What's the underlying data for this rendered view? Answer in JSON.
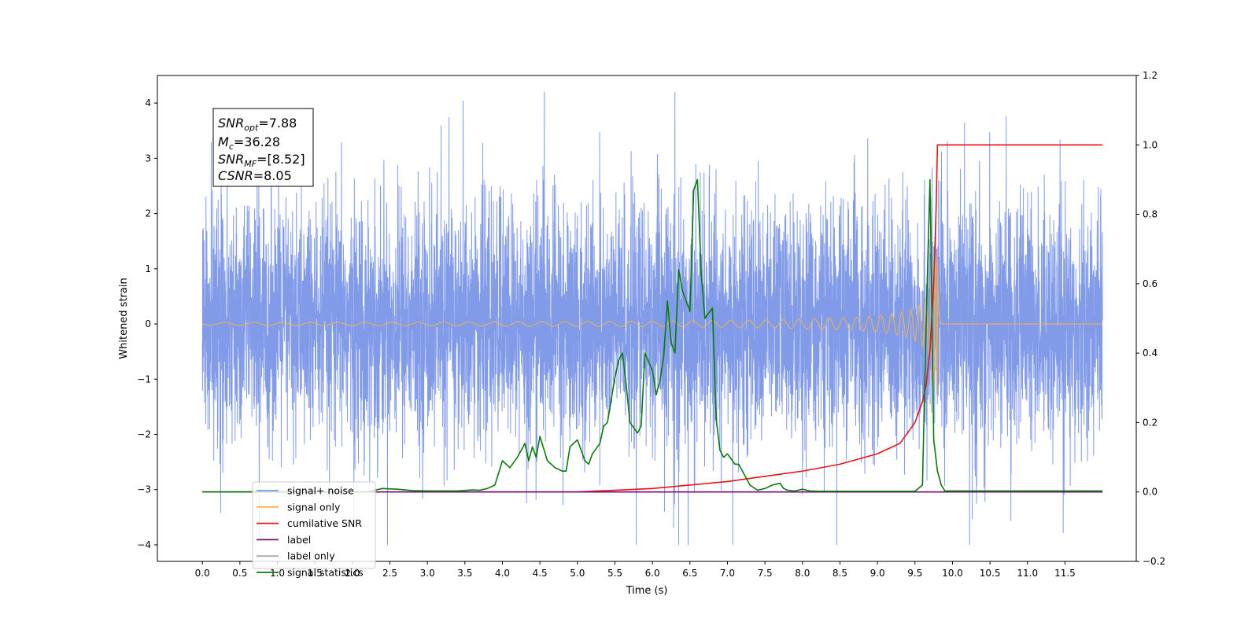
{
  "chart_data": {
    "type": "line",
    "xlabel": "Time (s)",
    "ylabel": "Whitened strain",
    "xlim": [
      -0.6,
      12.45
    ],
    "ylim": [
      -4.3,
      4.5
    ],
    "y2lim": [
      -0.2,
      1.2
    ],
    "x_ticks": [
      "0.0",
      "0.5",
      "1.0",
      "1.5",
      "2.0",
      "2.5",
      "3.0",
      "3.5",
      "4.0",
      "4.5",
      "5.0",
      "5.5",
      "6.0",
      "6.5",
      "7.0",
      "7.5",
      "8.0",
      "8.5",
      "9.0",
      "9.5",
      "10.0",
      "10.5",
      "11.0",
      "11.5"
    ],
    "y_ticks": [
      "4",
      "3",
      "2",
      "1",
      "0",
      "−1",
      "−2",
      "−3",
      "−4"
    ],
    "y2_ticks": [
      "1.2",
      "1.0",
      "0.8",
      "0.6",
      "0.4",
      "0.2",
      "0.0",
      "−0.2"
    ],
    "textbox": [
      {
        "base": "SNR",
        "sub": "opt",
        "value": "=7.88"
      },
      {
        "base": "M",
        "sub": "c",
        "value": "=36.28"
      },
      {
        "base": "SNR",
        "sub": "MF",
        "value": "=[8.52]"
      },
      {
        "base": "CSNR",
        "sub": "",
        "value": "=8.05"
      }
    ],
    "legend": {
      "placement": "lower-left",
      "entries": [
        {
          "label": "signal+ noise",
          "color": "#7b96e8"
        },
        {
          "label": "signal only",
          "color": "#f5b04a"
        },
        {
          "label": "cumilative SNR",
          "color": "#ee1111"
        },
        {
          "label": "label",
          "color": "#7b0b7b"
        },
        {
          "label": "label only",
          "color": "#aaaaaa"
        },
        {
          "label": "signal statistics",
          "color": "#0a7a0a"
        }
      ]
    },
    "series": [
      {
        "name": "signal+ noise",
        "axis": "left",
        "color": "#7b96e8",
        "noise": true,
        "x_range": [
          0,
          12.0
        ],
        "amplitude_band": [
          -2.5,
          2.5
        ]
      },
      {
        "name": "signal only",
        "axis": "left",
        "color": "#f5b04a",
        "chirp": true,
        "x_range": [
          0,
          12.0
        ],
        "merger": 9.8
      },
      {
        "name": "cumilative SNR",
        "axis": "right",
        "color": "#ee1111",
        "x": [
          0,
          5.0,
          6.0,
          7.0,
          8.0,
          8.5,
          9.0,
          9.3,
          9.5,
          9.6,
          9.65,
          9.7,
          9.75,
          9.78,
          9.8,
          12.0
        ],
        "y": [
          0.0,
          0.0,
          0.01,
          0.03,
          0.06,
          0.08,
          0.11,
          0.14,
          0.2,
          0.26,
          0.31,
          0.41,
          0.6,
          0.8,
          1.0,
          1.0
        ]
      },
      {
        "name": "label",
        "axis": "right",
        "color": "#7b0b7b",
        "x": [
          0,
          9.75,
          9.75,
          9.8,
          9.8,
          12.0
        ],
        "y": [
          0,
          0,
          0,
          0,
          0,
          0
        ]
      },
      {
        "name": "signal statistics",
        "axis": "right",
        "color": "#0a7a0a",
        "x": [
          0,
          2.1,
          2.2,
          2.3,
          2.4,
          2.6,
          2.8,
          3.0,
          3.4,
          3.6,
          3.7,
          3.8,
          3.9,
          4.0,
          4.1,
          4.2,
          4.3,
          4.35,
          4.4,
          4.45,
          4.5,
          4.6,
          4.7,
          4.8,
          4.85,
          4.9,
          5.0,
          5.1,
          5.15,
          5.2,
          5.3,
          5.35,
          5.4,
          5.5,
          5.55,
          5.6,
          5.65,
          5.7,
          5.8,
          5.85,
          5.9,
          6.0,
          6.05,
          6.1,
          6.15,
          6.2,
          6.25,
          6.3,
          6.35,
          6.4,
          6.5,
          6.55,
          6.6,
          6.65,
          6.7,
          6.8,
          6.85,
          6.9,
          6.95,
          7.0,
          7.1,
          7.15,
          7.2,
          7.3,
          7.4,
          7.5,
          7.6,
          7.7,
          7.75,
          7.8,
          7.9,
          8.0,
          8.1,
          8.2,
          8.4,
          9.5,
          9.6,
          9.65,
          9.7,
          9.75,
          9.8,
          9.85,
          9.9,
          10.0,
          10.2,
          10.5,
          12.0
        ],
        "y": [
          0.0,
          0.0,
          0.0,
          0.005,
          0.01,
          0.008,
          0.004,
          0.003,
          0.003,
          0.006,
          0.005,
          0.01,
          0.02,
          0.09,
          0.07,
          0.1,
          0.14,
          0.09,
          0.13,
          0.1,
          0.16,
          0.09,
          0.07,
          0.06,
          0.06,
          0.13,
          0.15,
          0.09,
          0.08,
          0.11,
          0.14,
          0.19,
          0.2,
          0.33,
          0.38,
          0.4,
          0.31,
          0.2,
          0.17,
          0.19,
          0.4,
          0.35,
          0.28,
          0.32,
          0.39,
          0.55,
          0.43,
          0.4,
          0.64,
          0.58,
          0.52,
          0.87,
          0.9,
          0.63,
          0.5,
          0.53,
          0.21,
          0.12,
          0.1,
          0.11,
          0.08,
          0.08,
          0.06,
          0.02,
          0.005,
          0.01,
          0.02,
          0.025,
          0.01,
          0.005,
          0.003,
          0.008,
          0.003,
          0.002,
          0.002,
          0.002,
          0.02,
          0.5,
          0.9,
          0.15,
          0.06,
          0.02,
          0.003,
          0.003,
          0.003,
          0.003,
          0.003
        ]
      }
    ]
  }
}
